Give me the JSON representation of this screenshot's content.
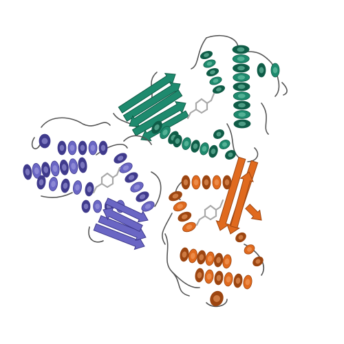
{
  "image": {
    "subject": "protein-ribbon-trimer",
    "background_color": "#ffffff"
  },
  "chains": [
    {
      "id": "chain-a",
      "color": "#1e8a6e",
      "highlight": "#7fd1b6",
      "shadow": "#0f5c47"
    },
    {
      "id": "chain-b",
      "color": "#6a66c4",
      "highlight": "#a9a6e6",
      "shadow": "#3f3a8c"
    },
    {
      "id": "chain-c",
      "color": "#e06a1e",
      "highlight": "#f5a56b",
      "shadow": "#9c4510"
    }
  ],
  "ligand_color": "#a8a8a8",
  "coil_color": "#555555"
}
